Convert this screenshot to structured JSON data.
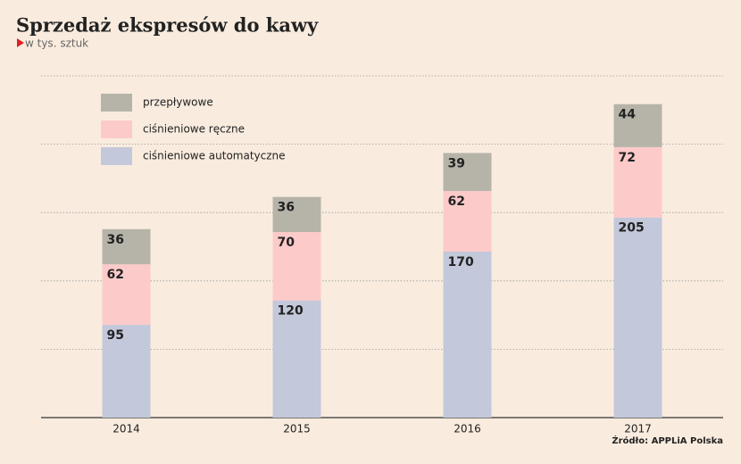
{
  "chart_data": {
    "type": "stacked_bar",
    "title": "Sprzedaż ekspresów do kawy",
    "subtitle": "w tys. sztuk",
    "source": "Źródło: APPLiA Polska",
    "categories": [
      "2014",
      "2015",
      "2016",
      "2017"
    ],
    "series": [
      {
        "name": "ciśnieniowe automatyczne",
        "color": "#c3c8da",
        "values": [
          95,
          120,
          170,
          205
        ]
      },
      {
        "name": "ciśnieniowe ręczne",
        "color": "#fdcaca",
        "values": [
          62,
          70,
          62,
          72
        ]
      },
      {
        "name": "przepływowe",
        "color": "#b6b4a8",
        "values": [
          36,
          36,
          39,
          44
        ]
      }
    ],
    "ylim": [
      0,
      350
    ],
    "yticks": [
      0,
      70,
      140,
      210,
      280,
      350
    ],
    "grid": true
  }
}
